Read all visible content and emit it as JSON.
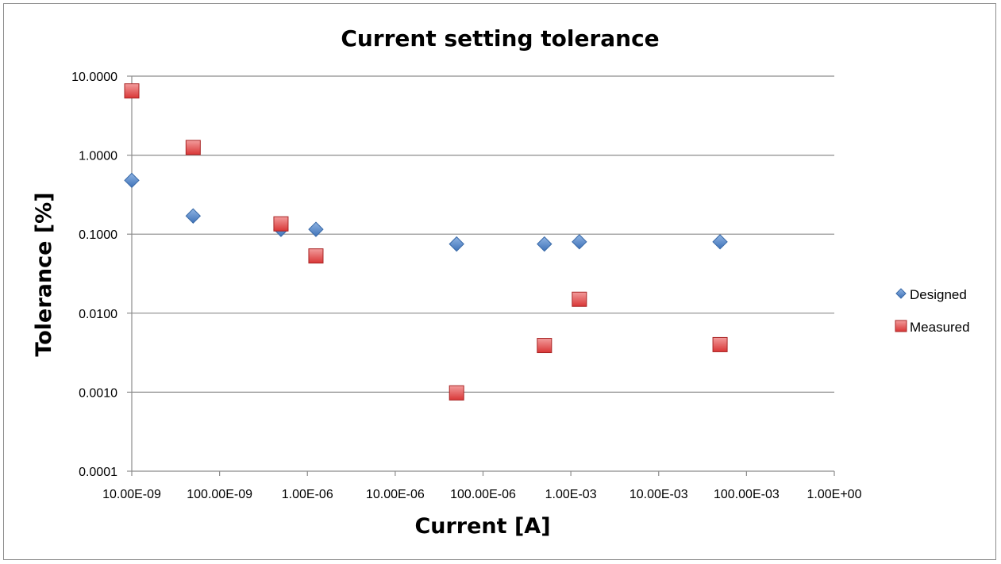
{
  "chart_data": {
    "type": "scatter",
    "title": "Current setting tolerance",
    "xlabel": "Current [A]",
    "ylabel": "Tolerance [%]",
    "x_scale": "log",
    "y_scale": "log",
    "xlim": [
      1e-08,
      1
    ],
    "ylim": [
      0.0001,
      10
    ],
    "x_tick_values": [
      1e-08,
      1e-07,
      1e-06,
      1e-05,
      0.0001,
      0.001,
      0.01,
      0.1,
      1
    ],
    "x_tick_labels": [
      "10.00E-09",
      "100.00E-09",
      "1.00E-06",
      "10.00E-06",
      "100.00E-06",
      "1.00E-03",
      "10.00E-03",
      "100.00E-03",
      "1.00E+00"
    ],
    "y_tick_values": [
      0.0001,
      0.001,
      0.01,
      0.1,
      1,
      10
    ],
    "y_tick_labels": [
      "0.0001",
      "0.0010",
      "0.0100",
      "0.1000",
      "1.0000",
      "10.0000"
    ],
    "grid": "horizontal",
    "legend_position": "right",
    "series": [
      {
        "name": "Designed",
        "marker": "diamond",
        "color": "#4f81bd",
        "points": [
          {
            "x": 1e-08,
            "y": 0.48
          },
          {
            "x": 5e-08,
            "y": 0.17
          },
          {
            "x": 5e-07,
            "y": 0.115
          },
          {
            "x": 1.25e-06,
            "y": 0.115
          },
          {
            "x": 5e-05,
            "y": 0.075
          },
          {
            "x": 0.0005,
            "y": 0.075
          },
          {
            "x": 0.00125,
            "y": 0.08
          },
          {
            "x": 0.05,
            "y": 0.08
          }
        ]
      },
      {
        "name": "Measured",
        "marker": "square",
        "color": "#d93636",
        "points": [
          {
            "x": 1e-08,
            "y": 6.5
          },
          {
            "x": 5e-08,
            "y": 1.25
          },
          {
            "x": 5e-07,
            "y": 0.135
          },
          {
            "x": 1.25e-06,
            "y": 0.053
          },
          {
            "x": 5e-05,
            "y": 0.00098
          },
          {
            "x": 0.0005,
            "y": 0.0039
          },
          {
            "x": 0.00125,
            "y": 0.015
          },
          {
            "x": 0.05,
            "y": 0.004
          }
        ]
      }
    ]
  }
}
